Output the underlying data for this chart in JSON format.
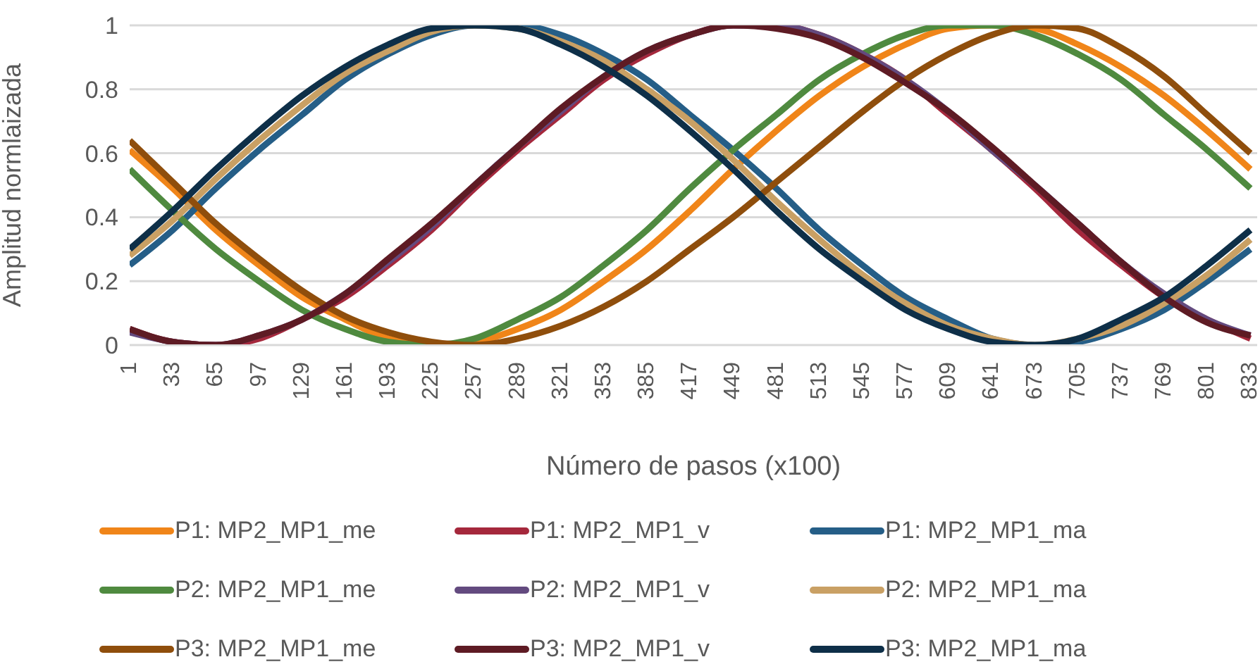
{
  "chart_data": {
    "type": "line",
    "xlabel": "Número de pasos (x100)",
    "ylabel": "Amplitud normlaizada",
    "x": [
      1,
      33,
      65,
      97,
      129,
      161,
      193,
      225,
      257,
      289,
      321,
      353,
      385,
      417,
      449,
      481,
      513,
      545,
      577,
      609,
      641,
      673,
      705,
      737,
      769,
      801,
      833
    ],
    "xlim": [
      1,
      838
    ],
    "xticks": [
      1,
      33,
      65,
      97,
      129,
      161,
      193,
      225,
      257,
      289,
      321,
      353,
      385,
      417,
      449,
      481,
      513,
      545,
      577,
      609,
      641,
      673,
      705,
      737,
      769,
      801,
      833
    ],
    "ylim": [
      0,
      1
    ],
    "yticks": [
      0,
      0.2,
      0.4,
      0.6,
      0.8,
      1
    ],
    "grid": "y",
    "legend": "bottom",
    "marker": "none",
    "line_style": "solid",
    "series": [
      {
        "name": "P1: MP2_MP1_me",
        "color": "#f08519",
        "values": [
          0.61,
          0.49,
          0.36,
          0.25,
          0.15,
          0.08,
          0.02,
          0,
          0.01,
          0.05,
          0.11,
          0.2,
          0.3,
          0.42,
          0.55,
          0.67,
          0.78,
          0.87,
          0.94,
          0.99,
          1,
          0.99,
          0.94,
          0.87,
          0.78,
          0.67,
          0.55
        ]
      },
      {
        "name": "P1: MP2_MP1_v",
        "color": "#a5283c",
        "values": [
          0.05,
          0.01,
          0,
          0.02,
          0.08,
          0.15,
          0.25,
          0.36,
          0.49,
          0.61,
          0.72,
          0.83,
          0.91,
          0.97,
          1,
          1,
          0.97,
          0.91,
          0.83,
          0.72,
          0.61,
          0.49,
          0.36,
          0.25,
          0.15,
          0.08,
          0.02
        ]
      },
      {
        "name": "P1: MP2_MP1_ma",
        "color": "#255e87",
        "values": [
          0.25,
          0.36,
          0.49,
          0.61,
          0.72,
          0.83,
          0.91,
          0.97,
          1,
          1,
          0.97,
          0.91,
          0.83,
          0.72,
          0.61,
          0.49,
          0.36,
          0.25,
          0.15,
          0.08,
          0.02,
          0,
          0.01,
          0.05,
          0.11,
          0.2,
          0.3
        ]
      },
      {
        "name": "P2: MP2_MP1_me",
        "color": "#4f8a3f",
        "values": [
          0.55,
          0.42,
          0.3,
          0.2,
          0.11,
          0.05,
          0.01,
          0,
          0.02,
          0.08,
          0.15,
          0.25,
          0.36,
          0.49,
          0.61,
          0.72,
          0.83,
          0.91,
          0.97,
          1,
          1,
          0.97,
          0.91,
          0.83,
          0.72,
          0.61,
          0.49
        ]
      },
      {
        "name": "P2: MP2_MP1_v",
        "color": "#634a7f",
        "values": [
          0.04,
          0.01,
          0,
          0.03,
          0.08,
          0.16,
          0.26,
          0.37,
          0.5,
          0.62,
          0.73,
          0.84,
          0.92,
          0.97,
          1,
          1,
          0.97,
          0.91,
          0.83,
          0.73,
          0.61,
          0.5,
          0.38,
          0.26,
          0.16,
          0.08,
          0.03
        ]
      },
      {
        "name": "P2: MP2_MP1_ma",
        "color": "#c9a064",
        "values": [
          0.28,
          0.39,
          0.52,
          0.64,
          0.75,
          0.85,
          0.92,
          0.98,
          1,
          0.99,
          0.95,
          0.89,
          0.8,
          0.7,
          0.58,
          0.45,
          0.33,
          0.22,
          0.13,
          0.06,
          0.02,
          0,
          0.02,
          0.06,
          0.13,
          0.22,
          0.33
        ]
      },
      {
        "name": "P3: MP2_MP1_me",
        "color": "#8f4e0c",
        "values": [
          0.64,
          0.51,
          0.38,
          0.27,
          0.17,
          0.09,
          0.04,
          0.01,
          0,
          0.02,
          0.06,
          0.12,
          0.2,
          0.3,
          0.4,
          0.51,
          0.62,
          0.73,
          0.83,
          0.91,
          0.97,
          1,
          0.99,
          0.93,
          0.84,
          0.72,
          0.6
        ]
      },
      {
        "name": "P3: MP2_MP1_v",
        "color": "#5e1b24",
        "values": [
          0.05,
          0.01,
          0,
          0.03,
          0.08,
          0.16,
          0.27,
          0.38,
          0.5,
          0.62,
          0.74,
          0.84,
          0.92,
          0.97,
          1,
          0.99,
          0.96,
          0.9,
          0.82,
          0.73,
          0.62,
          0.5,
          0.38,
          0.26,
          0.15,
          0.07,
          0.03
        ]
      },
      {
        "name": "P3: MP2_MP1_ma",
        "color": "#0e2f48",
        "values": [
          0.3,
          0.42,
          0.55,
          0.67,
          0.78,
          0.87,
          0.94,
          0.99,
          1,
          0.99,
          0.94,
          0.87,
          0.78,
          0.67,
          0.55,
          0.42,
          0.3,
          0.2,
          0.11,
          0.05,
          0.01,
          0,
          0.02,
          0.08,
          0.15,
          0.25,
          0.36
        ]
      }
    ]
  }
}
